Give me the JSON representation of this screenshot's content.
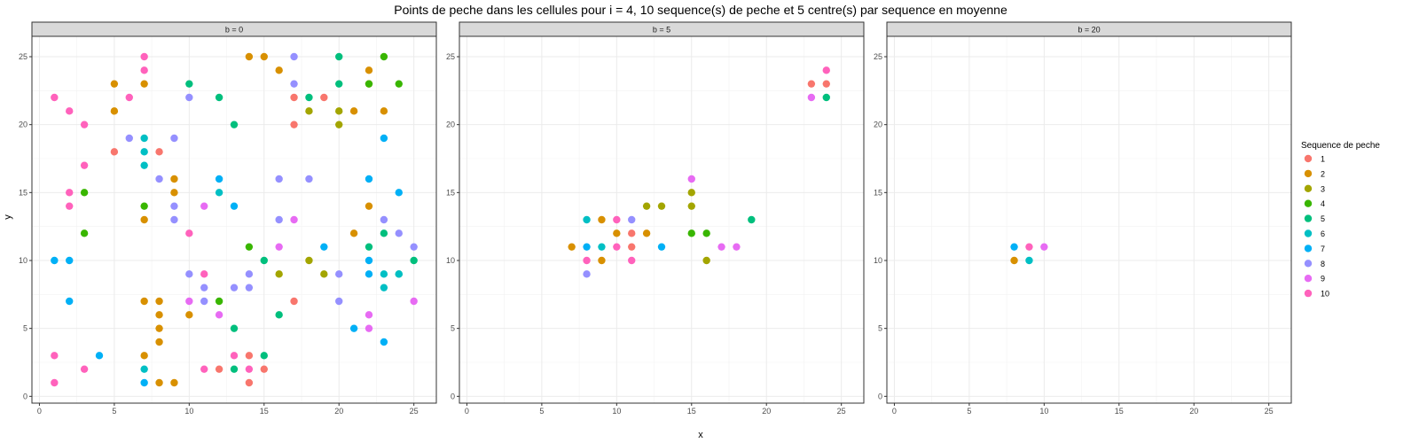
{
  "chart_data": {
    "type": "scatter",
    "title": "Points de peche dans les cellules pour i = 4, 10 sequence(s) de peche et 5 centre(s) par sequence en moyenne",
    "xlabel": "x",
    "ylabel": "y",
    "xlim": [
      -0.5,
      26.5
    ],
    "ylim": [
      -0.5,
      26.5
    ],
    "xticks": [
      0,
      5,
      10,
      15,
      20,
      25
    ],
    "yticks": [
      0,
      5,
      10,
      15,
      20,
      25
    ],
    "grid": true,
    "legend": {
      "title": "Sequence de peche",
      "position": "right",
      "entries": [
        {
          "label": "1",
          "color": "#F8766D"
        },
        {
          "label": "2",
          "color": "#D89000"
        },
        {
          "label": "3",
          "color": "#A3A500"
        },
        {
          "label": "4",
          "color": "#39B600"
        },
        {
          "label": "5",
          "color": "#00BF7D"
        },
        {
          "label": "6",
          "color": "#00BFC4"
        },
        {
          "label": "7",
          "color": "#00B0F6"
        },
        {
          "label": "8",
          "color": "#9590FF"
        },
        {
          "label": "9",
          "color": "#E76BF3"
        },
        {
          "label": "10",
          "color": "#FF62BC"
        }
      ]
    },
    "panels": [
      {
        "strip": "b = 0",
        "series": [
          {
            "name": "1",
            "points": [
              [
                5,
                18
              ],
              [
                8,
                18
              ],
              [
                14,
                1
              ],
              [
                14,
                3
              ],
              [
                15,
                2
              ],
              [
                12,
                2
              ],
              [
                17,
                7
              ],
              [
                17,
                20
              ],
              [
                17,
                22
              ],
              [
                19,
                22
              ]
            ]
          },
          {
            "name": "2",
            "points": [
              [
                5,
                21
              ],
              [
                5,
                23
              ],
              [
                7,
                23
              ],
              [
                7,
                13
              ],
              [
                7,
                7
              ],
              [
                7,
                3
              ],
              [
                8,
                1
              ],
              [
                9,
                1
              ],
              [
                8,
                4
              ],
              [
                8,
                5
              ],
              [
                8,
                6
              ],
              [
                8,
                7
              ],
              [
                9,
                15
              ],
              [
                9,
                16
              ],
              [
                10,
                6
              ],
              [
                14,
                25
              ],
              [
                15,
                25
              ],
              [
                16,
                24
              ],
              [
                21,
                12
              ],
              [
                21,
                21
              ],
              [
                22,
                14
              ],
              [
                22,
                23
              ],
              [
                22,
                24
              ],
              [
                23,
                21
              ]
            ]
          },
          {
            "name": "3",
            "points": [
              [
                16,
                9
              ],
              [
                18,
                10
              ],
              [
                18,
                21
              ],
              [
                19,
                9
              ],
              [
                20,
                20
              ],
              [
                20,
                21
              ]
            ]
          },
          {
            "name": "4",
            "points": [
              [
                3,
                12
              ],
              [
                3,
                15
              ],
              [
                7,
                14
              ],
              [
                12,
                7
              ],
              [
                14,
                11
              ],
              [
                22,
                23
              ],
              [
                23,
                25
              ],
              [
                24,
                23
              ]
            ]
          },
          {
            "name": "5",
            "points": [
              [
                10,
                23
              ],
              [
                12,
                22
              ],
              [
                13,
                20
              ],
              [
                13,
                5
              ],
              [
                13,
                2
              ],
              [
                15,
                3
              ],
              [
                15,
                10
              ],
              [
                16,
                6
              ],
              [
                18,
                22
              ],
              [
                20,
                23
              ],
              [
                20,
                25
              ],
              [
                22,
                11
              ],
              [
                23,
                12
              ],
              [
                24,
                9
              ],
              [
                25,
                10
              ]
            ]
          },
          {
            "name": "6",
            "points": [
              [
                7,
                19
              ],
              [
                7,
                18
              ],
              [
                7,
                17
              ],
              [
                7,
                2
              ],
              [
                12,
                15
              ],
              [
                23,
                8
              ],
              [
                23,
                9
              ],
              [
                24,
                9
              ]
            ]
          },
          {
            "name": "7",
            "points": [
              [
                1,
                10
              ],
              [
                2,
                10
              ],
              [
                2,
                7
              ],
              [
                4,
                3
              ],
              [
                7,
                1
              ],
              [
                12,
                16
              ],
              [
                13,
                14
              ],
              [
                19,
                11
              ],
              [
                21,
                5
              ],
              [
                22,
                9
              ],
              [
                22,
                10
              ],
              [
                22,
                16
              ],
              [
                23,
                19
              ],
              [
                23,
                4
              ],
              [
                24,
                15
              ]
            ]
          },
          {
            "name": "8",
            "points": [
              [
                6,
                19
              ],
              [
                8,
                16
              ],
              [
                9,
                19
              ],
              [
                9,
                14
              ],
              [
                9,
                13
              ],
              [
                10,
                22
              ],
              [
                10,
                9
              ],
              [
                11,
                8
              ],
              [
                11,
                7
              ],
              [
                13,
                8
              ],
              [
                14,
                8
              ],
              [
                14,
                9
              ],
              [
                16,
                16
              ],
              [
                16,
                13
              ],
              [
                17,
                25
              ],
              [
                17,
                23
              ],
              [
                18,
                16
              ],
              [
                20,
                9
              ],
              [
                20,
                7
              ],
              [
                23,
                13
              ],
              [
                24,
                12
              ],
              [
                25,
                11
              ]
            ]
          },
          {
            "name": "9",
            "points": [
              [
                10,
                7
              ],
              [
                11,
                14
              ],
              [
                12,
                6
              ],
              [
                16,
                11
              ],
              [
                17,
                13
              ],
              [
                22,
                6
              ],
              [
                22,
                5
              ],
              [
                25,
                7
              ]
            ]
          },
          {
            "name": "10",
            "points": [
              [
                1,
                22
              ],
              [
                1,
                3
              ],
              [
                1,
                1
              ],
              [
                2,
                21
              ],
              [
                2,
                15
              ],
              [
                2,
                14
              ],
              [
                3,
                20
              ],
              [
                3,
                17
              ],
              [
                3,
                2
              ],
              [
                6,
                22
              ],
              [
                7,
                25
              ],
              [
                7,
                24
              ],
              [
                10,
                12
              ],
              [
                11,
                9
              ],
              [
                11,
                2
              ],
              [
                13,
                3
              ],
              [
                14,
                2
              ]
            ]
          }
        ]
      },
      {
        "strip": "b = 5",
        "series": [
          {
            "name": "1",
            "points": [
              [
                11,
                12
              ],
              [
                11,
                11
              ],
              [
                23,
                23
              ],
              [
                24,
                23
              ]
            ]
          },
          {
            "name": "2",
            "points": [
              [
                7,
                11
              ],
              [
                9,
                13
              ],
              [
                9,
                10
              ],
              [
                10,
                12
              ],
              [
                12,
                12
              ]
            ]
          },
          {
            "name": "3",
            "points": [
              [
                12,
                14
              ],
              [
                13,
                14
              ],
              [
                15,
                15
              ],
              [
                15,
                14
              ],
              [
                16,
                10
              ]
            ]
          },
          {
            "name": "4",
            "points": [
              [
                15,
                12
              ],
              [
                16,
                12
              ]
            ]
          },
          {
            "name": "5",
            "points": [
              [
                19,
                13
              ],
              [
                24,
                22
              ]
            ]
          },
          {
            "name": "6",
            "points": [
              [
                8,
                13
              ],
              [
                9,
                11
              ]
            ]
          },
          {
            "name": "7",
            "points": [
              [
                8,
                11
              ],
              [
                13,
                11
              ]
            ]
          },
          {
            "name": "8",
            "points": [
              [
                8,
                9
              ],
              [
                11,
                13
              ]
            ]
          },
          {
            "name": "9",
            "points": [
              [
                15,
                16
              ],
              [
                17,
                11
              ],
              [
                18,
                11
              ],
              [
                23,
                22
              ]
            ]
          },
          {
            "name": "10",
            "points": [
              [
                8,
                10
              ],
              [
                10,
                13
              ],
              [
                10,
                11
              ],
              [
                11,
                10
              ],
              [
                24,
                24
              ]
            ]
          }
        ]
      },
      {
        "strip": "b = 20",
        "series": [
          {
            "name": "2",
            "points": [
              [
                8,
                10
              ]
            ]
          },
          {
            "name": "6",
            "points": [
              [
                9,
                10
              ]
            ]
          },
          {
            "name": "7",
            "points": [
              [
                8,
                11
              ]
            ]
          },
          {
            "name": "9",
            "points": [
              [
                10,
                11
              ]
            ]
          },
          {
            "name": "10",
            "points": [
              [
                9,
                11
              ]
            ]
          }
        ]
      }
    ]
  }
}
